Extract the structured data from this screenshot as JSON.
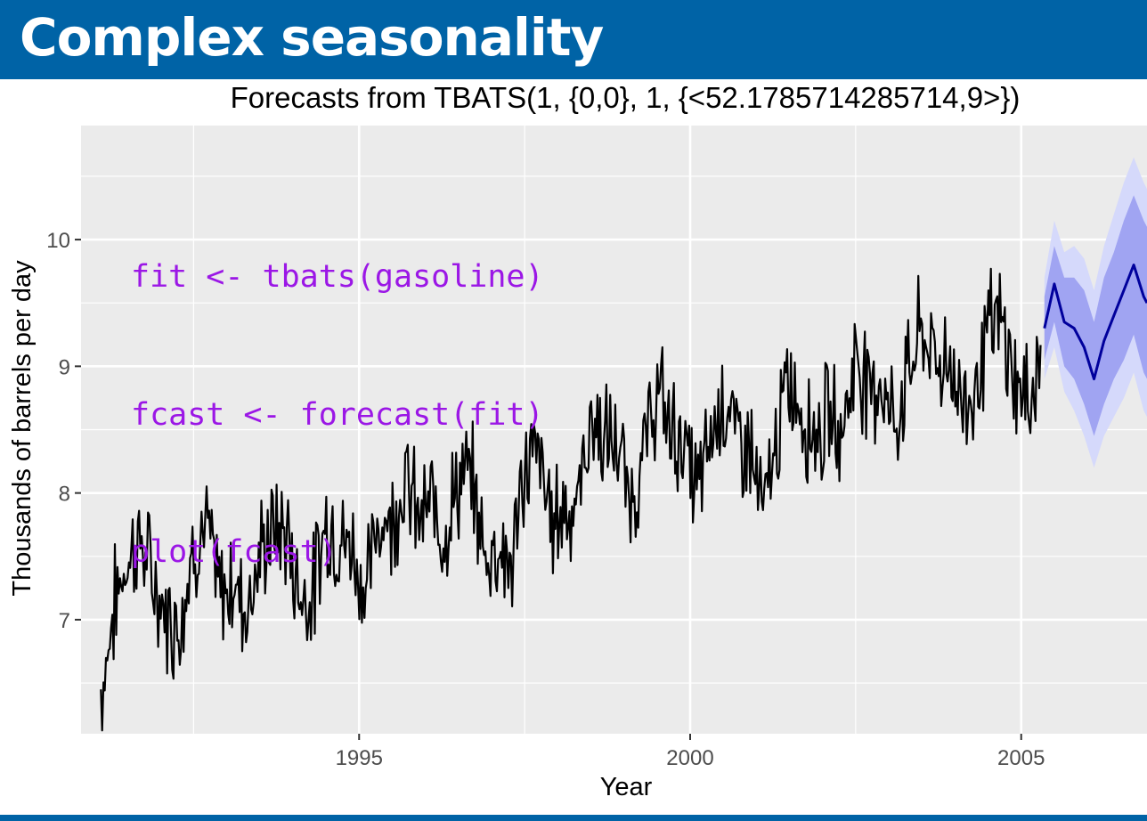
{
  "header": {
    "title": "Complex seasonality"
  },
  "code": {
    "color": "#9b17e6",
    "lines": [
      "fit <- tbats(gasoline)",
      "fcast <- forecast(fit)",
      "plot(fcast)"
    ]
  },
  "colors": {
    "header_bg": "#0063a6",
    "panel_bg": "#ebebeb",
    "grid": "#ffffff",
    "history_line": "#000000",
    "forecast_line": "#00009c",
    "pi_80": "#a0a4f2",
    "pi_95": "#d5d9fb"
  },
  "chart_data": {
    "type": "line",
    "title": "Forecasts from TBATS(1, {0,0}, 1, {<52.1785714285714,9>})",
    "xlabel": "Year",
    "ylabel": "Thousands of barrels per day",
    "xlim": [
      1990.8,
      2006.9
    ],
    "ylim": [
      6.1,
      10.9
    ],
    "x_ticks": [
      {
        "value": 1995,
        "label": "1995"
      },
      {
        "value": 2000,
        "label": "2000"
      },
      {
        "value": 2005,
        "label": "2005"
      }
    ],
    "y_ticks": [
      {
        "value": 7,
        "label": "7"
      },
      {
        "value": 8,
        "label": "8"
      },
      {
        "value": 9,
        "label": "9"
      },
      {
        "value": 10,
        "label": "10"
      }
    ],
    "grid": true,
    "series": [
      {
        "role": "history",
        "x": [
          1991.1,
          1991.3,
          1991.5,
          1991.7,
          1991.9,
          1992.1,
          1992.3,
          1992.5,
          1992.7,
          1992.9,
          1993.1,
          1993.3,
          1993.5,
          1993.7,
          1993.9,
          1994.1,
          1994.3,
          1994.5,
          1994.7,
          1994.9,
          1995.1,
          1995.3,
          1995.5,
          1995.7,
          1995.9,
          1996.1,
          1996.3,
          1996.5,
          1996.7,
          1996.9,
          1997.1,
          1997.3,
          1997.5,
          1997.7,
          1997.9,
          1998.1,
          1998.3,
          1998.5,
          1998.7,
          1998.9,
          1999.1,
          1999.3,
          1999.5,
          1999.7,
          1999.9,
          2000.1,
          2000.3,
          2000.5,
          2000.7,
          2000.9,
          2001.1,
          2001.3,
          2001.5,
          2001.7,
          2001.9,
          2002.1,
          2002.3,
          2002.5,
          2002.7,
          2002.9,
          2003.1,
          2003.3,
          2003.5,
          2003.7,
          2003.9,
          2004.1,
          2004.3,
          2004.5,
          2004.7,
          2004.9,
          2005.1,
          2005.3
        ],
        "y": [
          6.6,
          7.1,
          7.3,
          7.5,
          7.4,
          7.2,
          7.0,
          7.4,
          7.6,
          7.3,
          7.5,
          7.1,
          7.3,
          7.6,
          7.8,
          7.4,
          7.2,
          7.6,
          7.5,
          7.7,
          7.4,
          7.8,
          7.6,
          8.0,
          7.9,
          8.1,
          7.7,
          7.9,
          8.0,
          7.6,
          7.8,
          7.4,
          8.0,
          8.2,
          7.9,
          8.1,
          7.9,
          8.4,
          8.3,
          8.5,
          8.1,
          8.3,
          8.6,
          8.4,
          8.5,
          8.2,
          8.4,
          8.6,
          8.3,
          8.5,
          8.0,
          8.4,
          8.7,
          8.5,
          8.6,
          8.8,
          8.5,
          8.9,
          8.7,
          9.0,
          8.7,
          9.0,
          9.1,
          8.9,
          9.2,
          8.9,
          8.8,
          9.1,
          9.2,
          9.0,
          8.9,
          9.1
        ],
        "color": "#000000"
      },
      {
        "role": "forecast",
        "x": [
          2005.35,
          2005.5,
          2005.65,
          2005.8,
          2005.95,
          2006.1,
          2006.25,
          2006.4,
          2006.55,
          2006.7,
          2006.85,
          2006.9
        ],
        "y": [
          9.3,
          9.65,
          9.35,
          9.3,
          9.15,
          8.9,
          9.2,
          9.4,
          9.6,
          9.8,
          9.55,
          9.5
        ],
        "lo80": [
          9.05,
          9.35,
          9.0,
          8.9,
          8.7,
          8.45,
          8.7,
          8.9,
          9.05,
          9.25,
          8.95,
          8.9
        ],
        "hi80": [
          9.55,
          9.95,
          9.7,
          9.7,
          9.6,
          9.35,
          9.7,
          9.9,
          10.15,
          10.35,
          10.15,
          10.1
        ],
        "lo95": [
          8.9,
          9.15,
          8.8,
          8.65,
          8.45,
          8.2,
          8.45,
          8.6,
          8.75,
          8.95,
          8.65,
          8.6
        ],
        "hi95": [
          9.7,
          10.15,
          9.9,
          9.95,
          9.85,
          9.6,
          9.95,
          10.2,
          10.45,
          10.65,
          10.45,
          10.4
        ],
        "color": "#00009c"
      }
    ]
  }
}
